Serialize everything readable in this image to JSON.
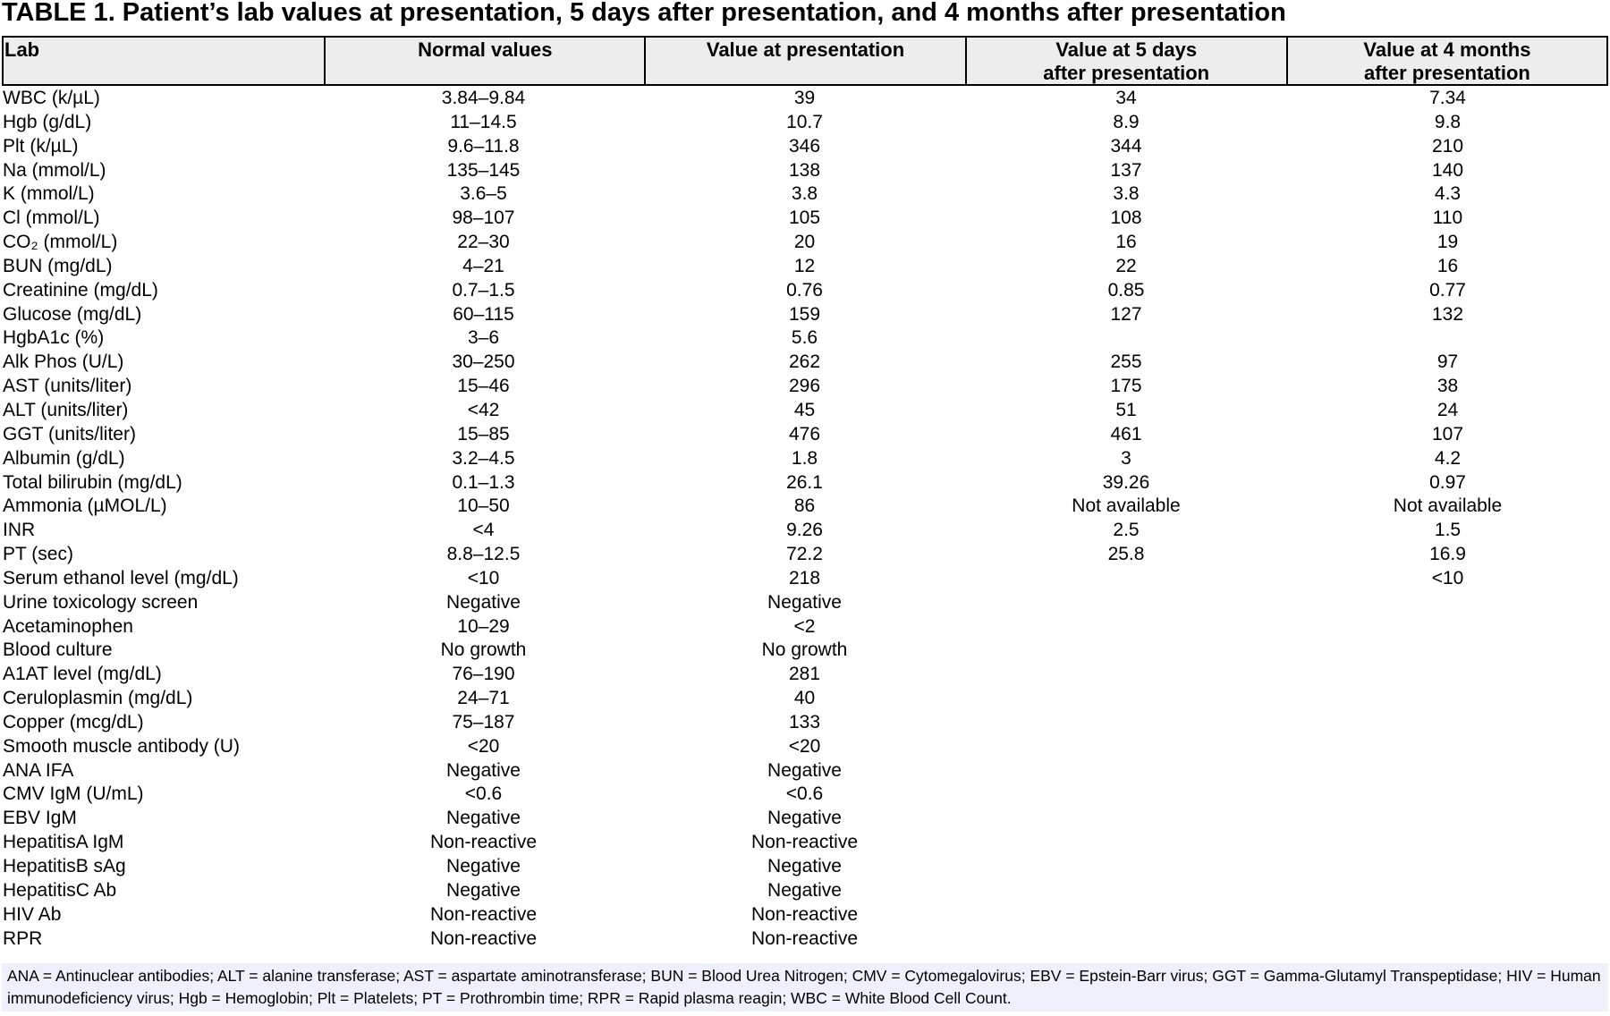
{
  "document": {
    "title": "TABLE 1. Patient’s lab values at presentation, 5 days after presentation, and 4 months after presentation",
    "headers": [
      {
        "line1": "Lab",
        "line2": ""
      },
      {
        "line1": "Normal values",
        "line2": ""
      },
      {
        "line1": "Value at presentation",
        "line2": ""
      },
      {
        "line1": "Value at 5 days",
        "line2": "after presentation"
      },
      {
        "line1": "Value at 4 months",
        "line2": "after presentation"
      }
    ],
    "rows": [
      {
        "lab": "WBC (k/µL)",
        "normal": "3.84–9.84",
        "presentation": "39",
        "day5": "34",
        "month4": "7.34"
      },
      {
        "lab": "Hgb (g/dL)",
        "normal": "11–14.5",
        "presentation": "10.7",
        "day5": "8.9",
        "month4": "9.8"
      },
      {
        "lab": "Plt (k/µL)",
        "normal": "9.6–11.8",
        "presentation": "346",
        "day5": "344",
        "month4": "210"
      },
      {
        "lab": "Na (mmol/L)",
        "normal": "135–145",
        "presentation": "138",
        "day5": "137",
        "month4": "140"
      },
      {
        "lab": "K (mmol/L)",
        "normal": "3.6–5",
        "presentation": "3.8",
        "day5": "3.8",
        "month4": "4.3"
      },
      {
        "lab": "Cl (mmol/L)",
        "normal": "98–107",
        "presentation": "105",
        "day5": "108",
        "month4": "110"
      },
      {
        "lab": "CO₂ (mmol/L)",
        "normal": "22–30",
        "presentation": "20",
        "day5": "16",
        "month4": "19"
      },
      {
        "lab": "BUN (mg/dL)",
        "normal": "4–21",
        "presentation": "12",
        "day5": "22",
        "month4": "16"
      },
      {
        "lab": "Creatinine (mg/dL)",
        "normal": "0.7–1.5",
        "presentation": "0.76",
        "day5": "0.85",
        "month4": "0.77"
      },
      {
        "lab": "Glucose (mg/dL)",
        "normal": "60–115",
        "presentation": "159",
        "day5": "127",
        "month4": "132"
      },
      {
        "lab": "HgbA1c (%)",
        "normal": "3–6",
        "presentation": "5.6",
        "day5": "",
        "month4": ""
      },
      {
        "lab": "Alk Phos (U/L)",
        "normal": "30–250",
        "presentation": "262",
        "day5": "255",
        "month4": "97"
      },
      {
        "lab": "AST (units/liter)",
        "normal": "15–46",
        "presentation": "296",
        "day5": "175",
        "month4": "38"
      },
      {
        "lab": "ALT (units/liter)",
        "normal": "<42",
        "presentation": "45",
        "day5": "51",
        "month4": "24"
      },
      {
        "lab": "GGT (units/liter)",
        "normal": "15–85",
        "presentation": "476",
        "day5": "461",
        "month4": "107"
      },
      {
        "lab": "Albumin (g/dL)",
        "normal": "3.2–4.5",
        "presentation": "1.8",
        "day5": "3",
        "month4": "4.2"
      },
      {
        "lab": "Total bilirubin (mg/dL)",
        "normal": "0.1–1.3",
        "presentation": "26.1",
        "day5": "39.26",
        "month4": "0.97"
      },
      {
        "lab": "Ammonia (µMOL/L)",
        "normal": "10–50",
        "presentation": "86",
        "day5": "Not available",
        "month4": "Not available"
      },
      {
        "lab": "INR",
        "normal": "<4",
        "presentation": "9.26",
        "day5": "2.5",
        "month4": "1.5"
      },
      {
        "lab": "PT (sec)",
        "normal": "8.8–12.5",
        "presentation": "72.2",
        "day5": "25.8",
        "month4": "16.9"
      },
      {
        "lab": "Serum ethanol level (mg/dL)",
        "normal": "<10",
        "presentation": "218",
        "day5": "",
        "month4": "<10"
      },
      {
        "lab": "Urine toxicology screen",
        "normal": "Negative",
        "presentation": "Negative",
        "day5": "",
        "month4": ""
      },
      {
        "lab": "Acetaminophen",
        "normal": "10–29",
        "presentation": "<2",
        "day5": "",
        "month4": ""
      },
      {
        "lab": "Blood culture",
        "normal": "No growth",
        "presentation": "No growth",
        "day5": "",
        "month4": ""
      },
      {
        "lab": "A1AT level (mg/dL)",
        "normal": "76–190",
        "presentation": "281",
        "day5": "",
        "month4": ""
      },
      {
        "lab": "Ceruloplasmin (mg/dL)",
        "normal": "24–71",
        "presentation": "40",
        "day5": "",
        "month4": ""
      },
      {
        "lab": "Copper (mcg/dL)",
        "normal": "75–187",
        "presentation": "133",
        "day5": "",
        "month4": ""
      },
      {
        "lab": "Smooth muscle antibody (U)",
        "normal": "<20",
        "presentation": "<20",
        "day5": "",
        "month4": ""
      },
      {
        "lab": "ANA IFA",
        "normal": "Negative",
        "presentation": "Negative",
        "day5": "",
        "month4": ""
      },
      {
        "lab": "CMV IgM (U/mL)",
        "normal": "<0.6",
        "presentation": "<0.6",
        "day5": "",
        "month4": ""
      },
      {
        "lab": "EBV IgM",
        "normal": "Negative",
        "presentation": "Negative",
        "day5": "",
        "month4": ""
      },
      {
        "lab": "HepatitisA IgM",
        "normal": "Non-reactive",
        "presentation": "Non-reactive",
        "day5": "",
        "month4": ""
      },
      {
        "lab": "HepatitisB sAg",
        "normal": "Negative",
        "presentation": "Negative",
        "day5": "",
        "month4": ""
      },
      {
        "lab": "HepatitisC Ab",
        "normal": "Negative",
        "presentation": "Negative",
        "day5": "",
        "month4": ""
      },
      {
        "lab": "HIV Ab",
        "normal": "Non-reactive",
        "presentation": "Non-reactive",
        "day5": "",
        "month4": ""
      },
      {
        "lab": "RPR",
        "normal": "Non-reactive",
        "presentation": "Non-reactive",
        "day5": "",
        "month4": ""
      }
    ],
    "footnote": "ANA = Antinuclear antibodies; ALT = alanine transferase; AST = aspartate aminotransferase; BUN = Blood Urea Nitrogen; CMV = Cytomegalovirus; EBV = Epstein-Barr virus; GGT = Gamma-Glutamyl Transpeptidase; HIV = Human immunodeficiency virus; Hgb = Hemoglobin; Plt = Platelets; PT = Prothrombin time; RPR = Rapid plasma reagin; WBC = White Blood Cell Count."
  },
  "colors": {
    "header_bg": "#ededed",
    "footnote_bg": "#eef0fb",
    "text": "#000000"
  }
}
